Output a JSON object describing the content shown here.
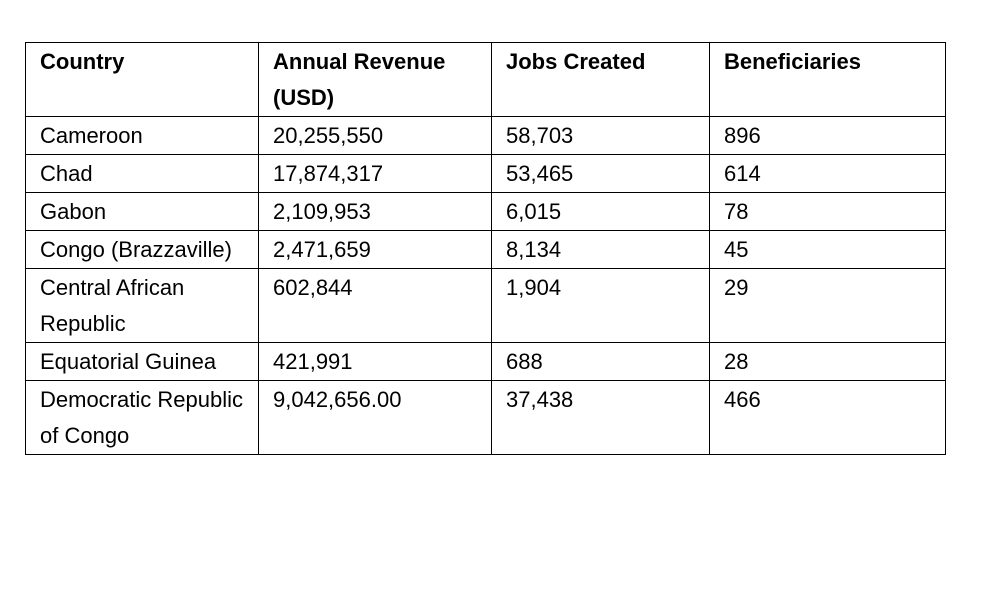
{
  "table": {
    "headers": [
      "Country",
      "Annual Revenue (USD)",
      "Jobs Created",
      "Beneficiaries"
    ],
    "rows": [
      [
        "Cameroon",
        "20,255,550",
        "58,703",
        "896"
      ],
      [
        "Chad",
        "17,874,317",
        "53,465",
        "614"
      ],
      [
        "Gabon",
        "2,109,953",
        "6,015",
        "78"
      ],
      [
        "Congo (Brazzaville)",
        "2,471,659",
        "8,134",
        "45"
      ],
      [
        "Central African Republic",
        "602,844",
        "1,904",
        "29"
      ],
      [
        "Equatorial Guinea",
        "421,991",
        "688",
        "28"
      ],
      [
        "Democratic Republic of Congo",
        "9,042,656.00",
        "37,438",
        "466"
      ]
    ]
  }
}
